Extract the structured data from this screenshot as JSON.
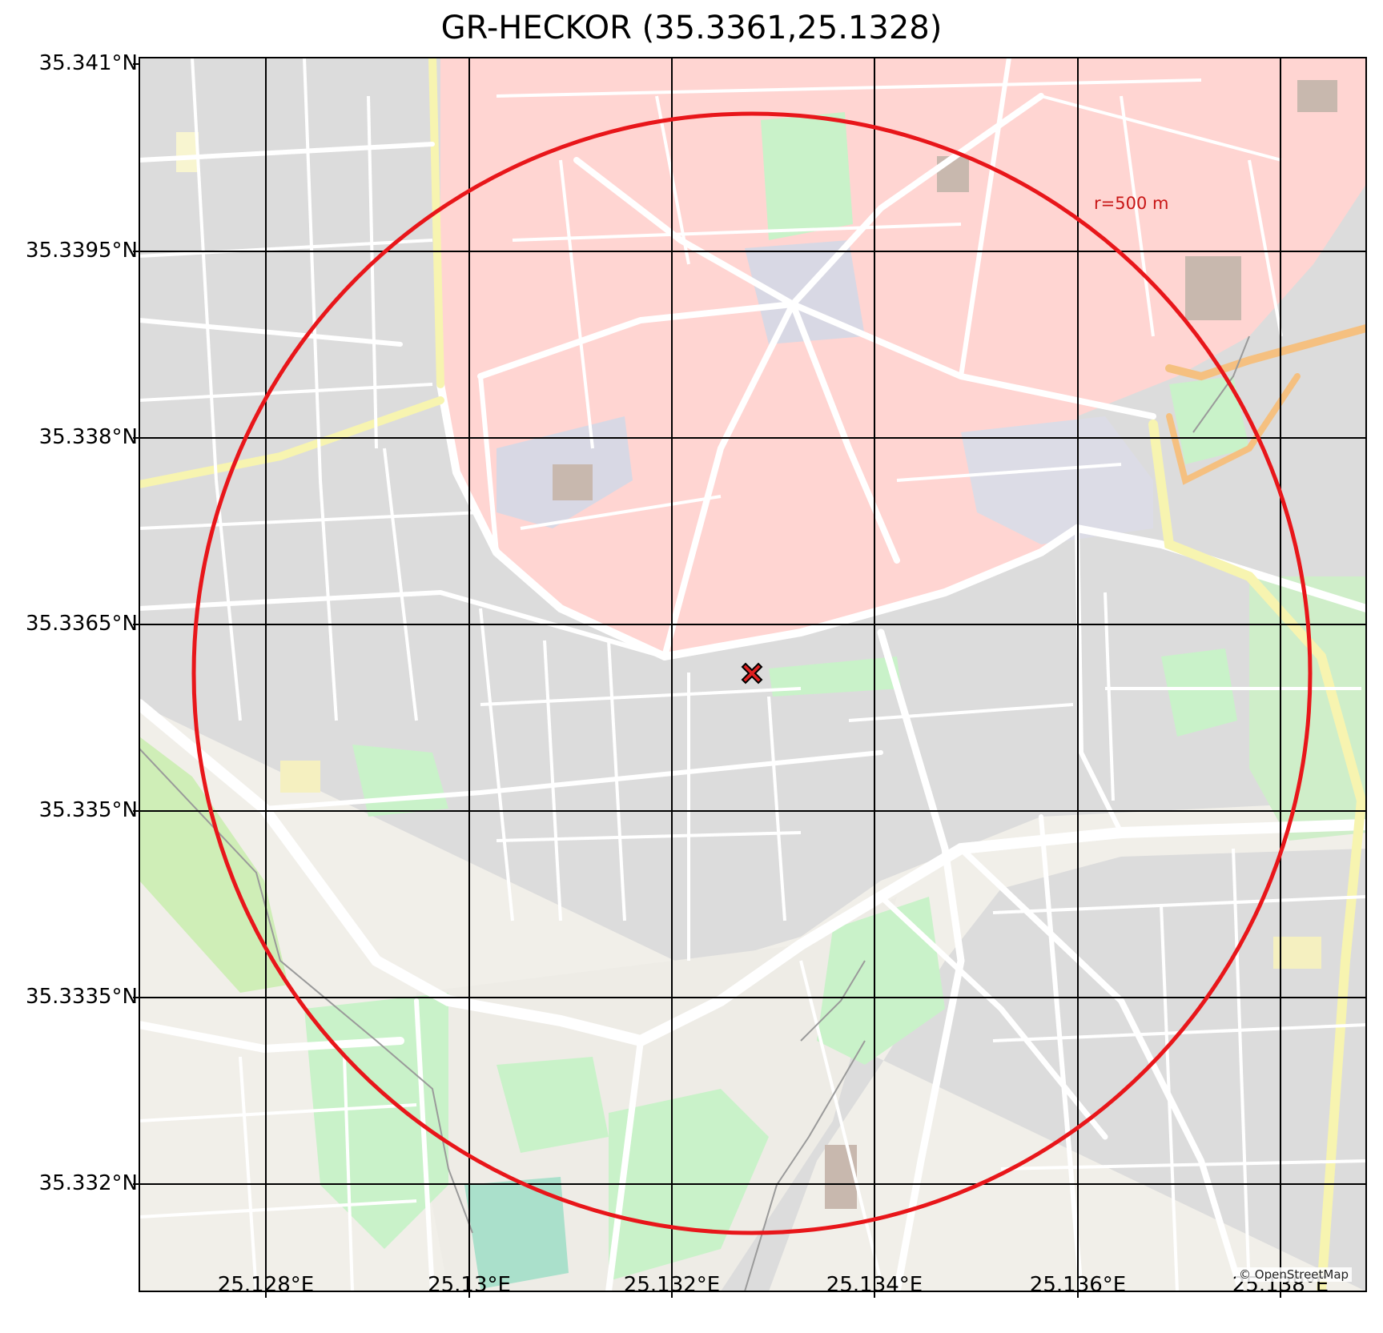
{
  "title": "GR-HECKOR (35.3361,25.1328)",
  "attribution": "© OpenStreetMap",
  "radius_label": "r=500 m",
  "y_ticks": [
    "35.341°N",
    "35.3395°N",
    "35.338°N",
    "35.3365°N",
    "35.335°N",
    "35.3335°N",
    "35.332°N"
  ],
  "x_ticks": [
    "25.128°E",
    "25.13°E",
    "25.132°E",
    "25.134°E",
    "25.136°E",
    "25.138°E"
  ],
  "marker": {
    "lat": 35.3361,
    "lon": 25.1328,
    "shape": "x",
    "color": "#e02020"
  },
  "circle": {
    "radius_m": 500,
    "color": "#e8161a"
  },
  "extent": {
    "lon_min": 25.1268,
    "lon_max": 25.1389,
    "lat_min": 35.3311,
    "lat_max": 35.3411
  },
  "colors": {
    "historic_zone": "#ffd5d2",
    "park": "#c9f2c9",
    "block": "#dcdcdc",
    "road": "#ffffff",
    "base": "#f1efe9"
  }
}
